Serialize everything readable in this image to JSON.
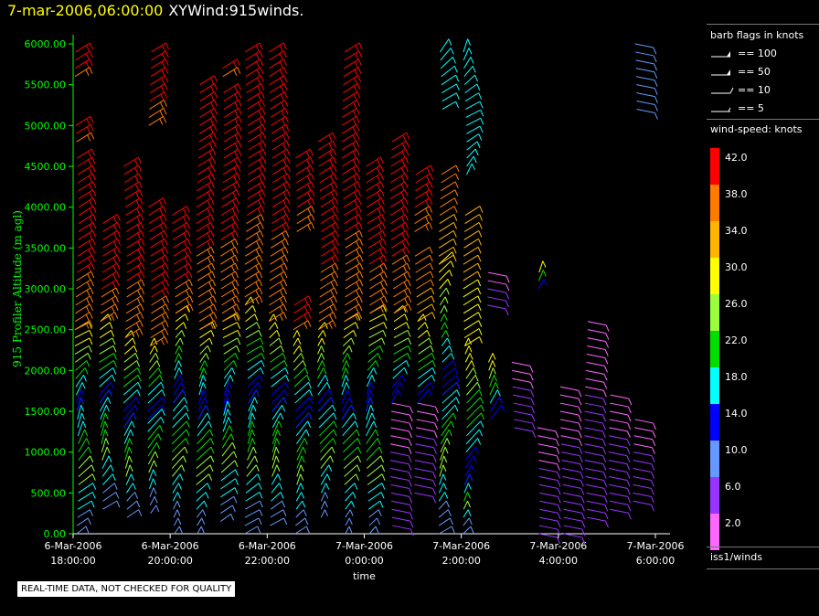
{
  "header": {
    "timestamp": "7-mar-2006,06:00:00",
    "title": "XYWind:915winds."
  },
  "footer": {
    "notice": "REAL-TIME DATA, NOT CHECKED FOR QUALITY"
  },
  "legend": {
    "barb_header": "barb flags in knots",
    "barb_items": [
      {
        "label": "== 100",
        "value": 100
      },
      {
        "label": "== 50",
        "value": 50
      },
      {
        "label": "== 10",
        "value": 10
      },
      {
        "label": "== 5",
        "value": 5
      }
    ],
    "scale_header": "wind-speed: knots",
    "scale": [
      {
        "label": "42.0",
        "color": "#ff0000"
      },
      {
        "label": "38.0",
        "color": "#ff7a00"
      },
      {
        "label": "34.0",
        "color": "#ffb400"
      },
      {
        "label": "30.0",
        "color": "#ffff00"
      },
      {
        "label": "26.0",
        "color": "#9aff3a"
      },
      {
        "label": "22.0",
        "color": "#00e000"
      },
      {
        "label": "18.0",
        "color": "#00ffff"
      },
      {
        "label": "14.0",
        "color": "#0000ff"
      },
      {
        "label": "10.0",
        "color": "#6699ff"
      },
      {
        "label": "6.0",
        "color": "#9933ff"
      },
      {
        "label": "2.0",
        "color": "#ff66ff"
      }
    ],
    "source": "iss1/winds"
  },
  "chart_data": {
    "type": "wind-barb profile",
    "ylabel": "915 Profiler Altitude (m agl)",
    "xlabel": "time",
    "ylim": [
      0,
      6000
    ],
    "yticks": [
      "0.00",
      "500.00",
      "1000.00",
      "1500.00",
      "2000.00",
      "2500.00",
      "3000.00",
      "3500.00",
      "4000.00",
      "4500.00",
      "5000.00",
      "5500.00",
      "6000.00"
    ],
    "xticks": [
      {
        "line1": "6-Mar-2006",
        "line2": "18:00:00"
      },
      {
        "line1": "6-Mar-2006",
        "line2": "20:00:00"
      },
      {
        "line1": "6-Mar-2006",
        "line2": "22:00:00"
      },
      {
        "line1": "7-Mar-2006",
        "line2": "0:00:00"
      },
      {
        "line1": "7-Mar-2006",
        "line2": "2:00:00"
      },
      {
        "line1": "7-Mar-2006",
        "line2": "4:00:00"
      },
      {
        "line1": "7-Mar-2006",
        "line2": "6:00:00"
      }
    ],
    "axis_color": "#00ff00",
    "profiles": [
      {
        "time": "6-Mar-2006 18:00",
        "segments": [
          [
            0,
            1500,
            "low"
          ],
          [
            1500,
            2500,
            "mid"
          ],
          [
            2500,
            4600,
            "high"
          ],
          [
            4800,
            5000,
            "high"
          ],
          [
            5600,
            5900,
            "high"
          ]
        ]
      },
      {
        "time": "6-Mar-2006 18:30",
        "segments": [
          [
            300,
            1600,
            "low"
          ],
          [
            1600,
            2600,
            "mid"
          ],
          [
            2600,
            3800,
            "high"
          ]
        ]
      },
      {
        "time": "6-Mar-2006 19:00",
        "segments": [
          [
            200,
            1300,
            "low"
          ],
          [
            1300,
            2400,
            "mid"
          ],
          [
            2400,
            4500,
            "high"
          ]
        ]
      },
      {
        "time": "6-Mar-2006 19:30",
        "segments": [
          [
            250,
            1400,
            "low"
          ],
          [
            1400,
            2300,
            "mid"
          ],
          [
            2300,
            4000,
            "high"
          ],
          [
            5000,
            5900,
            "high"
          ]
        ]
      },
      {
        "time": "6-Mar-2006 20:00",
        "segments": [
          [
            0,
            1600,
            "low"
          ],
          [
            1600,
            2700,
            "mid"
          ],
          [
            2700,
            3900,
            "high"
          ]
        ]
      },
      {
        "time": "6-Mar-2006 20:30",
        "segments": [
          [
            0,
            1400,
            "low"
          ],
          [
            1400,
            2500,
            "mid"
          ],
          [
            2500,
            5500,
            "high"
          ]
        ]
      },
      {
        "time": "6-Mar-2006 21:00",
        "segments": [
          [
            150,
            1500,
            "low"
          ],
          [
            1500,
            2600,
            "mid"
          ],
          [
            2600,
            5400,
            "high"
          ],
          [
            5600,
            5700,
            "high"
          ]
        ]
      },
      {
        "time": "6-Mar-2006 21:30",
        "segments": [
          [
            0,
            1600,
            "low"
          ],
          [
            1600,
            2800,
            "mid"
          ],
          [
            2800,
            5900,
            "high"
          ]
        ]
      },
      {
        "time": "6-Mar-2006 22:00",
        "segments": [
          [
            100,
            1500,
            "low"
          ],
          [
            1500,
            2600,
            "mid"
          ],
          [
            2600,
            5900,
            "high"
          ]
        ]
      },
      {
        "time": "6-Mar-2006 22:30",
        "segments": [
          [
            0,
            1300,
            "low"
          ],
          [
            1300,
            2400,
            "mid"
          ],
          [
            2500,
            2800,
            "high"
          ],
          [
            3700,
            4600,
            "high"
          ]
        ]
      },
      {
        "time": "6-Mar-2006 23:00",
        "segments": [
          [
            200,
            1500,
            "low"
          ],
          [
            1500,
            2500,
            "mid"
          ],
          [
            2500,
            4800,
            "high"
          ]
        ]
      },
      {
        "time": "6-Mar-2006 23:30",
        "segments": [
          [
            0,
            1400,
            "low"
          ],
          [
            1400,
            2600,
            "mid"
          ],
          [
            2600,
            5900,
            "high"
          ]
        ]
      },
      {
        "time": "7-Mar-2006 0:00",
        "segments": [
          [
            0,
            1500,
            "low"
          ],
          [
            1500,
            2700,
            "mid"
          ],
          [
            2700,
            4500,
            "high"
          ]
        ]
      },
      {
        "time": "7-Mar-2006 0:30",
        "segments": [
          [
            100,
            1600,
            "purple"
          ],
          [
            1600,
            2700,
            "mid"
          ],
          [
            2700,
            4800,
            "high"
          ]
        ]
      },
      {
        "time": "7-Mar-2006 1:00",
        "segments": [
          [
            500,
            1600,
            "purple"
          ],
          [
            1600,
            2600,
            "mid"
          ],
          [
            2600,
            3400,
            "orange"
          ],
          [
            3700,
            4400,
            "high"
          ]
        ]
      },
      {
        "time": "7-Mar-2006 1:30",
        "segments": [
          [
            0,
            1700,
            "low"
          ],
          [
            1700,
            3300,
            "mid"
          ],
          [
            3300,
            4400,
            "orange"
          ],
          [
            5200,
            5900,
            "cyan"
          ]
        ]
      },
      {
        "time": "7-Mar-2006 2:00",
        "segments": [
          [
            0,
            600,
            "low"
          ],
          [
            600,
            2300,
            "mid"
          ],
          [
            2300,
            3900,
            "yellow"
          ],
          [
            4400,
            5900,
            "cyan"
          ]
        ]
      },
      {
        "time": "7-Mar-2006 2:30",
        "segments": [
          [
            1400,
            2100,
            "mid"
          ],
          [
            2800,
            3200,
            "purple"
          ]
        ]
      },
      {
        "time": "7-Mar-2006 3:00",
        "segments": [
          [
            1300,
            2100,
            "purple"
          ]
        ]
      },
      {
        "time": "7-Mar-2006 3:30",
        "segments": [
          [
            0,
            1300,
            "purple"
          ],
          [
            3000,
            3200,
            "mid"
          ]
        ]
      },
      {
        "time": "7-Mar-2006 4:00",
        "segments": [
          [
            0,
            1800,
            "purple"
          ]
        ]
      },
      {
        "time": "7-Mar-2006 4:30",
        "segments": [
          [
            200,
            2600,
            "purple"
          ]
        ]
      },
      {
        "time": "7-Mar-2006 5:00",
        "segments": [
          [
            300,
            1700,
            "purple"
          ]
        ]
      },
      {
        "time": "7-Mar-2006 5:30",
        "segments": [
          [
            400,
            1400,
            "purple"
          ],
          [
            5200,
            6000,
            "lightblue"
          ]
        ]
      }
    ]
  }
}
